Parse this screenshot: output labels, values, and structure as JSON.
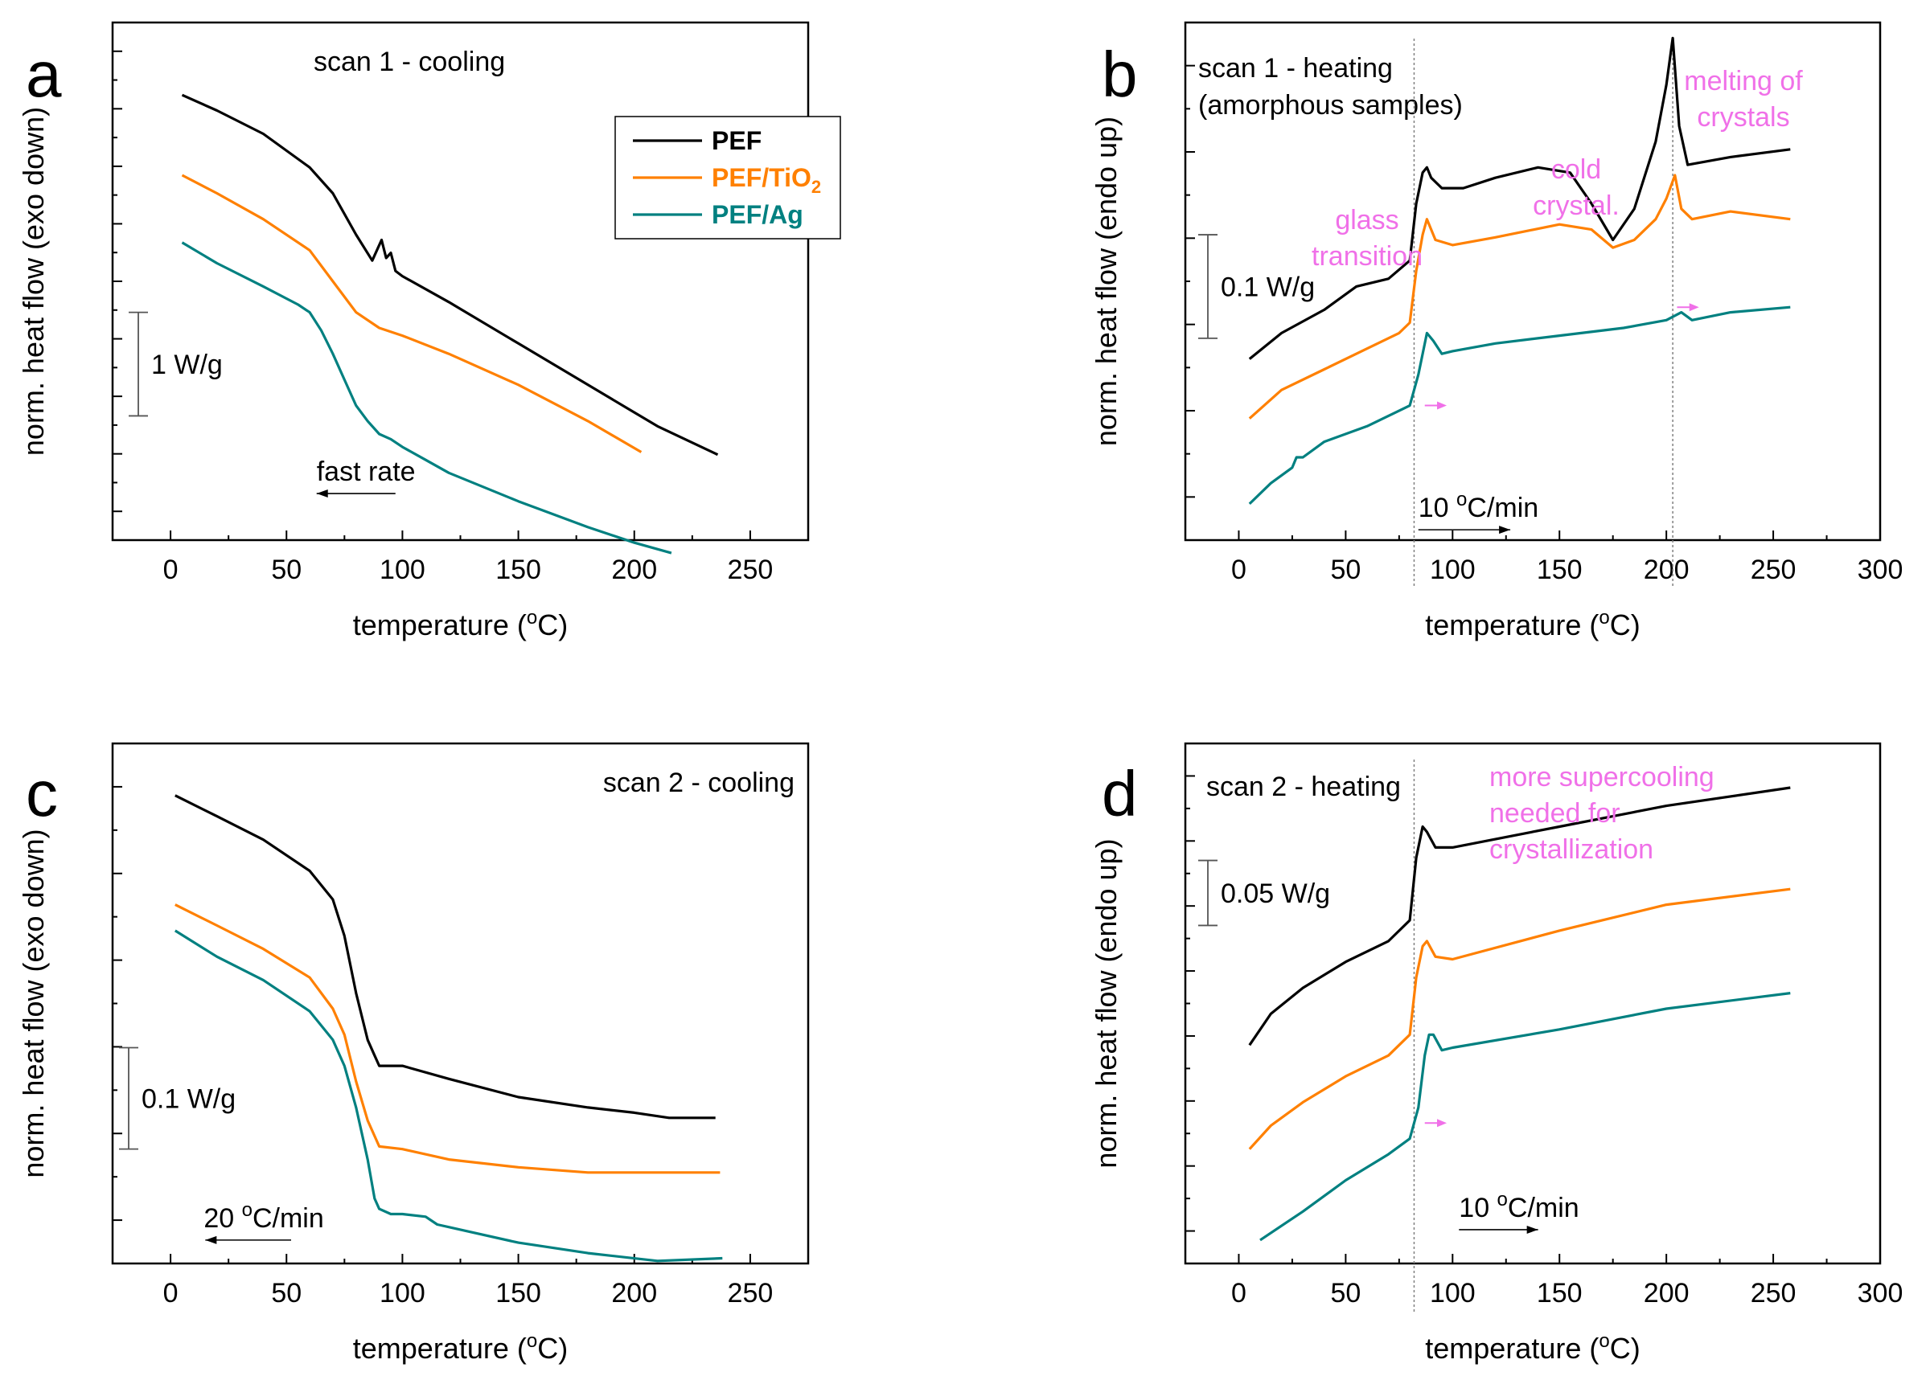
{
  "colors": {
    "PEF": "#000000",
    "PEF/TiO2": "#ff8000",
    "PEF/Ag": "#008080",
    "annotation": "#f070e8",
    "guide": "#808080"
  },
  "chart_data": [
    {
      "id": "a",
      "type": "line",
      "panel_label": "a",
      "title": "scan 1 -  cooling",
      "xlabel": "temperature (°C)",
      "ylabel": "norm. heat flow (exo down)",
      "xlim": [
        -25,
        275
      ],
      "xticks": [
        0,
        50,
        100,
        150,
        200,
        250
      ],
      "ylim": [
        0,
        100
      ],
      "yticks_count": 9,
      "scale_bar": {
        "label": "1 W/g",
        "from": 24,
        "to": 44
      },
      "rate": {
        "label": "fast rate",
        "arrow_from": 97,
        "arrow_to": 63,
        "arrow_y": 9
      },
      "legend": {
        "position": "top-right",
        "entries": [
          "PEF",
          "PEF/TiO",
          "PEF/Ag"
        ],
        "subscripts": [
          "",
          "2",
          ""
        ]
      },
      "series": [
        {
          "name": "PEF",
          "color": "#000000",
          "x": [
            5,
            20,
            40,
            60,
            70,
            80,
            87,
            91,
            93,
            95,
            97,
            100,
            120,
            150,
            180,
            210,
            236
          ],
          "y": [
            86,
            83,
            78.5,
            72,
            67,
            59,
            54,
            58,
            54.5,
            55.5,
            52,
            51,
            46,
            38,
            30,
            22,
            16.5
          ]
        },
        {
          "name": "PEF/TiO2",
          "color": "#ff8000",
          "x": [
            5,
            20,
            40,
            60,
            70,
            80,
            90,
            100,
            120,
            150,
            180,
            203
          ],
          "y": [
            70.5,
            67,
            62,
            56,
            50,
            44,
            41,
            39.5,
            36,
            30,
            23,
            17
          ]
        },
        {
          "name": "PEF/Ag",
          "color": "#008080",
          "x": [
            5,
            20,
            40,
            55,
            60,
            65,
            70,
            75,
            80,
            85,
            90,
            95,
            100,
            110,
            120,
            150,
            180,
            200,
            216
          ],
          "y": [
            57.5,
            53.5,
            49,
            45.5,
            44,
            40.5,
            36,
            31,
            26,
            23,
            20.5,
            19.5,
            18,
            15.5,
            13,
            7.5,
            2.5,
            -0.5,
            -2.5
          ]
        }
      ]
    },
    {
      "id": "b",
      "type": "line",
      "panel_label": "b",
      "title": "scan 1 -  heating",
      "title_line2": "(amorphous samples)",
      "xlabel": "temperature (°C)",
      "ylabel": "norm. heat flow (endo up)",
      "xlim": [
        -25,
        300
      ],
      "xticks": [
        0,
        50,
        100,
        150,
        200,
        250,
        300
      ],
      "ylim": [
        0,
        100
      ],
      "yticks_count": 6,
      "scale_bar": {
        "label": "0.1 W/g",
        "from": 39,
        "to": 59
      },
      "rate": {
        "label": "10 °C/min",
        "arrow_from": 84,
        "arrow_to": 127,
        "arrow_y": 2
      },
      "guides_x": [
        82,
        203
      ],
      "annotations": [
        {
          "lines": [
            "glass",
            "transition"
          ]
        },
        {
          "lines": [
            "cold",
            "crystal."
          ]
        },
        {
          "lines": [
            "melting of",
            "crystals"
          ]
        }
      ],
      "shift_arrows": [
        {
          "x_from": 87,
          "x_to": 95,
          "y": 26
        },
        {
          "x_from": 205,
          "x_to": 213,
          "y": 45
        }
      ],
      "series": [
        {
          "name": "PEF",
          "color": "#000000",
          "x": [
            5,
            20,
            40,
            55,
            70,
            80,
            83,
            86,
            88,
            90,
            95,
            105,
            120,
            140,
            155,
            165,
            175,
            185,
            195,
            200,
            203,
            206,
            210,
            230,
            258
          ],
          "y": [
            35,
            40,
            44.5,
            49,
            50.5,
            54,
            65,
            71,
            72,
            70,
            68,
            68,
            70,
            72,
            71,
            65,
            58,
            64,
            77,
            88,
            97,
            80,
            72.5,
            74,
            75.5
          ]
        },
        {
          "name": "PEF/TiO2",
          "color": "#ff8000",
          "x": [
            5,
            20,
            40,
            60,
            75,
            80,
            83,
            86,
            88,
            92,
            100,
            120,
            150,
            165,
            175,
            185,
            195,
            200,
            204,
            207,
            212,
            230,
            258
          ],
          "y": [
            23.5,
            29,
            33,
            37,
            40,
            42,
            52,
            59,
            62,
            58,
            57,
            58.5,
            61,
            60,
            56.5,
            58,
            62,
            66,
            70.5,
            64,
            62,
            63.5,
            62
          ]
        },
        {
          "name": "PEF/Ag",
          "color": "#008080",
          "x": [
            5,
            15,
            25,
            27,
            30,
            40,
            60,
            80,
            84,
            88,
            91,
            95,
            100,
            120,
            150,
            180,
            200,
            207,
            212,
            230,
            258
          ],
          "y": [
            7,
            11,
            14,
            16,
            16,
            19,
            22,
            26,
            32,
            40,
            38.5,
            36,
            36.5,
            38,
            39.5,
            41,
            42.5,
            44,
            42.5,
            44,
            45
          ]
        }
      ]
    },
    {
      "id": "c",
      "type": "line",
      "panel_label": "c",
      "title": "scan 2 -  cooling",
      "xlabel": "temperature (°C)",
      "ylabel": "norm. heat flow (exo down)",
      "xlim": [
        -25,
        275
      ],
      "xticks": [
        0,
        50,
        100,
        150,
        200,
        250
      ],
      "ylim": [
        0,
        100
      ],
      "yticks_count": 6,
      "scale_bar": {
        "label": "0.1 W/g",
        "from": 22,
        "to": 41.5
      },
      "rate": {
        "label": "20 °C/min",
        "arrow_from": 52,
        "arrow_to": 15,
        "arrow_y": 4.5
      },
      "series": [
        {
          "name": "PEF",
          "color": "#000000",
          "x": [
            2,
            20,
            40,
            60,
            70,
            75,
            80,
            85,
            88,
            90,
            100,
            120,
            150,
            180,
            200,
            215,
            235
          ],
          "y": [
            90,
            86,
            81.5,
            75.5,
            70,
            63,
            52,
            43,
            40,
            38,
            38,
            35.5,
            32,
            30,
            29,
            28,
            28
          ]
        },
        {
          "name": "PEF/TiO2",
          "color": "#ff8000",
          "x": [
            2,
            20,
            40,
            60,
            70,
            75,
            80,
            85,
            90,
            100,
            120,
            150,
            180,
            210,
            237
          ],
          "y": [
            69,
            65,
            60.5,
            55,
            49,
            44,
            35,
            27.5,
            22.5,
            22,
            20,
            18.5,
            17.5,
            17.5,
            17.5
          ]
        },
        {
          "name": "PEF/Ag",
          "color": "#008080",
          "x": [
            2,
            20,
            40,
            60,
            70,
            75,
            80,
            85,
            88,
            90,
            95,
            100,
            110,
            115,
            130,
            150,
            180,
            210,
            238
          ],
          "y": [
            64,
            59,
            54.5,
            48.5,
            43,
            38,
            30,
            20,
            12.5,
            10.5,
            9.5,
            9.5,
            9,
            7.5,
            6,
            4,
            2,
            0.5,
            1
          ]
        }
      ]
    },
    {
      "id": "d",
      "type": "line",
      "panel_label": "d",
      "title": "scan 2 -  heating",
      "xlabel": "temperature (°C)",
      "ylabel": "norm. heat flow (endo up)",
      "xlim": [
        -25,
        300
      ],
      "xticks": [
        0,
        50,
        100,
        150,
        200,
        250,
        300
      ],
      "ylim": [
        0,
        100
      ],
      "yticks_count": 8,
      "scale_bar": {
        "label": "0.05 W/g",
        "from": 65,
        "to": 77.5
      },
      "rate": {
        "label": "10 °C/min",
        "arrow_from": 103,
        "arrow_to": 140,
        "arrow_y": 6.5
      },
      "guides_x": [
        82
      ],
      "annotations": [
        {
          "lines": [
            "more supercooling",
            "needed for",
            "crystallization"
          ]
        }
      ],
      "shift_arrows": [
        {
          "x_from": 87,
          "x_to": 95,
          "y": 27
        }
      ],
      "series": [
        {
          "name": "PEF",
          "color": "#000000",
          "x": [
            5,
            15,
            30,
            50,
            70,
            80,
            83,
            86,
            88,
            92,
            100,
            150,
            200,
            258
          ],
          "y": [
            42,
            48,
            53,
            58,
            62,
            66,
            78,
            84,
            83,
            80,
            80,
            84,
            88,
            91.5
          ]
        },
        {
          "name": "PEF/TiO2",
          "color": "#ff8000",
          "x": [
            5,
            15,
            30,
            50,
            70,
            80,
            83,
            86,
            88,
            92,
            100,
            150,
            200,
            258
          ],
          "y": [
            22,
            26.5,
            31,
            36,
            40,
            44,
            55,
            61,
            62,
            59,
            58.5,
            64,
            69,
            72
          ]
        },
        {
          "name": "PEF/Ag",
          "color": "#008080",
          "x": [
            10,
            30,
            50,
            70,
            80,
            84,
            87,
            89,
            91,
            95,
            100,
            150,
            200,
            258
          ],
          "y": [
            4.5,
            10,
            16,
            21,
            24,
            30,
            40,
            44,
            44,
            41,
            41.5,
            45,
            49,
            52
          ]
        }
      ]
    }
  ]
}
